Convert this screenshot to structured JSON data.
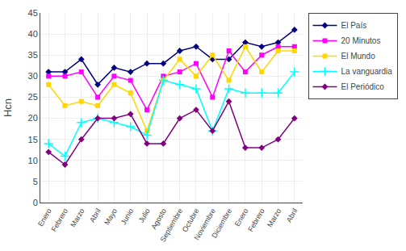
{
  "chart_data": {
    "type": "line",
    "categories": [
      "Enero",
      "Febrero",
      "Marzo",
      "Abril",
      "Mayo",
      "Junio",
      "Julio",
      "Agosto",
      "Septiembre",
      "Octubre",
      "Noviembre",
      "Diciembre",
      "Enero",
      "Febrero",
      "Marzo",
      "Abril"
    ],
    "series": [
      {
        "name": "El País",
        "color": "#000080",
        "marker": "diamond",
        "values": [
          31,
          31,
          34,
          28,
          32,
          31,
          33,
          33,
          36,
          37,
          34,
          34,
          38,
          37,
          38,
          41
        ]
      },
      {
        "name": "20 Minutos",
        "color": "#FF00FF",
        "marker": "square",
        "values": [
          30,
          30,
          31,
          25,
          30,
          29,
          22,
          30,
          31,
          33,
          25,
          36,
          31,
          35,
          37,
          37
        ]
      },
      {
        "name": "El Mundo",
        "color": "#FFD700",
        "marker": "square",
        "values": [
          28,
          23,
          24,
          23,
          28,
          26,
          17,
          29,
          34,
          30,
          35,
          29,
          37,
          31,
          36,
          36
        ]
      },
      {
        "name": "La vanguardia",
        "color": "#00FFFF",
        "marker": "plus",
        "values": [
          14,
          11,
          19,
          20,
          19,
          18,
          16,
          29,
          28,
          27,
          17,
          27,
          26,
          26,
          26,
          31
        ]
      },
      {
        "name": "El Periódico",
        "color": "#800080",
        "marker": "diamond",
        "values": [
          12,
          9,
          15,
          20,
          20,
          21,
          14,
          14,
          20,
          22,
          17,
          24,
          13,
          13,
          15,
          20
        ]
      }
    ],
    "y_label": "Hcn",
    "ylim": [
      0,
      45
    ],
    "yticks": [
      0,
      5,
      10,
      15,
      20,
      25,
      30,
      35,
      40,
      45
    ],
    "grid": true,
    "legend": "right"
  }
}
